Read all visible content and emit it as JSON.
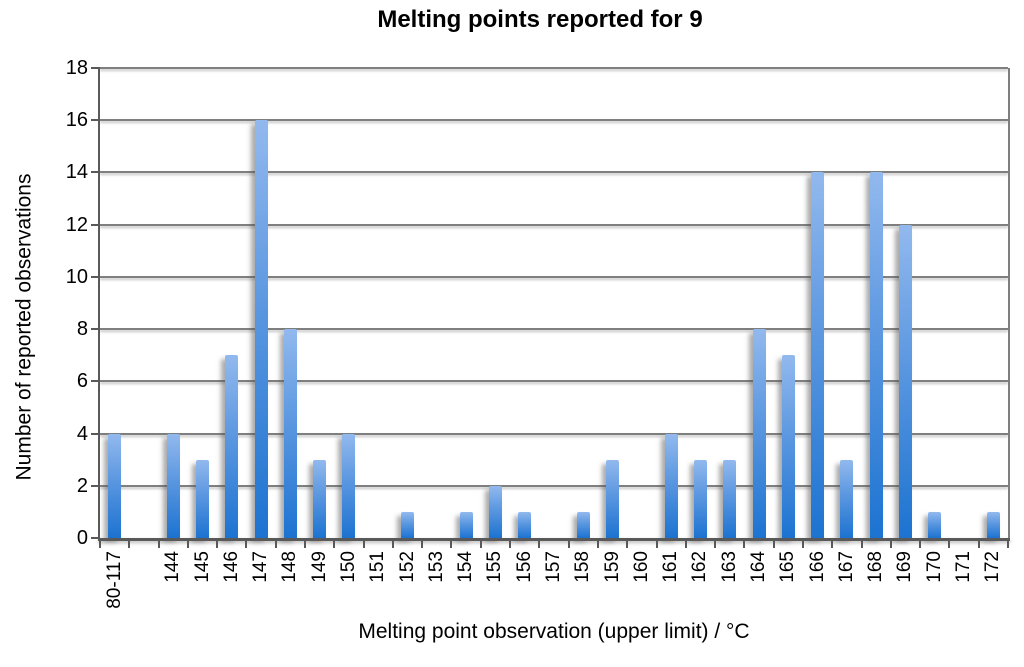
{
  "background": "#ffffff",
  "chart_data": {
    "type": "bar",
    "title": "Melting points reported for 9",
    "xlabel": "Melting point observation (upper limit) / °C",
    "ylabel": "Number of reported observations",
    "categories": [
      "80-117",
      "",
      "144",
      "145",
      "146",
      "147",
      "148",
      "149",
      "150",
      "151",
      "152",
      "153",
      "154",
      "155",
      "156",
      "157",
      "158",
      "159",
      "160",
      "161",
      "162",
      "163",
      "164",
      "165",
      "166",
      "167",
      "168",
      "169",
      "170",
      "171",
      "172"
    ],
    "values": [
      4,
      0,
      4,
      3,
      7,
      16,
      8,
      3,
      4,
      0,
      1,
      0,
      1,
      2,
      1,
      0,
      1,
      3,
      0,
      4,
      3,
      3,
      8,
      7,
      14,
      3,
      14,
      12,
      1,
      0,
      1
    ],
    "ylim": [
      0,
      18
    ],
    "ytick_step": 2,
    "yticks": [
      0,
      2,
      4,
      6,
      8,
      10,
      12,
      14,
      16,
      18
    ],
    "grid": true,
    "legend": false,
    "colors": {
      "bar_gradient_top": "#92b9ee",
      "bar_gradient_mid": "#5b97e0",
      "bar_gradient_bottom": "#1c73d1",
      "gridline": "#7f7f7f",
      "axis": "#595959",
      "text": "#000000",
      "background": "#ffffff"
    }
  }
}
